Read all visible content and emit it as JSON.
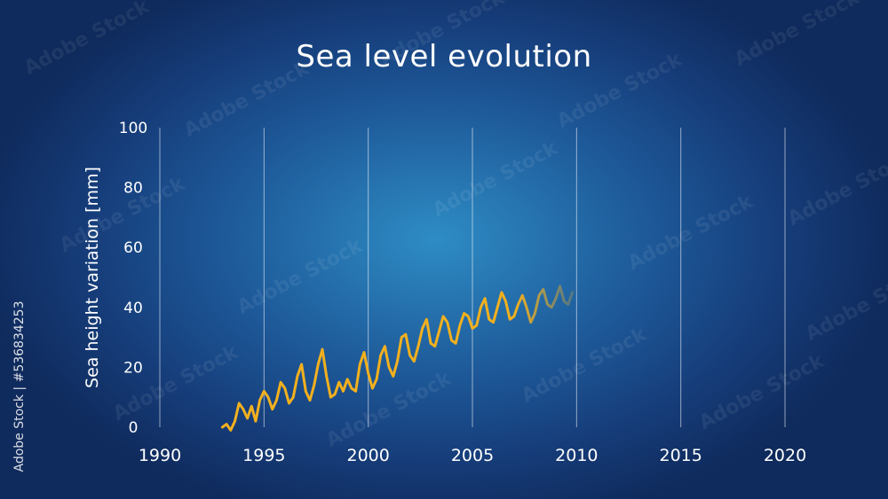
{
  "chart_data": {
    "type": "line",
    "title": "Sea level evolution",
    "xlabel": "",
    "ylabel": "Sea height variation [mm]",
    "x_ticks": [
      1990,
      1995,
      2000,
      2005,
      2010,
      2015,
      2020
    ],
    "y_ticks": [
      0,
      20,
      40,
      60,
      80,
      100
    ],
    "xlim": [
      1990,
      2020
    ],
    "ylim": [
      0,
      100
    ],
    "grid": "vertical",
    "series": [
      {
        "color": "#f2b01e",
        "x": [
          1993.0,
          1993.2,
          1993.4,
          1993.6,
          1993.8,
          1994.0,
          1994.2,
          1994.4,
          1994.6,
          1994.8,
          1995.0,
          1995.2,
          1995.4,
          1995.6,
          1995.8,
          1996.0,
          1996.2,
          1996.4,
          1996.6,
          1996.8,
          1997.0,
          1997.2,
          1997.4,
          1997.6,
          1997.8,
          1998.0,
          1998.2,
          1998.4,
          1998.6,
          1998.8,
          1999.0,
          1999.2,
          1999.4,
          1999.6,
          1999.8,
          2000.0,
          2000.2,
          2000.4,
          2000.6,
          2000.8,
          2001.0,
          2001.2,
          2001.4,
          2001.6,
          2001.8,
          2002.0,
          2002.2,
          2002.4,
          2002.6,
          2002.8,
          2003.0,
          2003.2,
          2003.4,
          2003.6,
          2003.8,
          2004.0,
          2004.2,
          2004.4,
          2004.6,
          2004.8,
          2005.0,
          2005.2,
          2005.4,
          2005.6,
          2005.8,
          2006.0,
          2006.2,
          2006.4,
          2006.6,
          2006.8,
          2007.0,
          2007.2,
          2007.4,
          2007.6,
          2007.8,
          2008.0,
          2008.2,
          2008.4,
          2008.6,
          2008.8,
          2009.0,
          2009.2,
          2009.4,
          2009.6,
          2009.8
        ],
        "y": [
          0,
          1,
          -1,
          2,
          8,
          6,
          3,
          7,
          2,
          9,
          12,
          10,
          6,
          9,
          15,
          13,
          8,
          10,
          17,
          21,
          12,
          9,
          14,
          21,
          26,
          17,
          10,
          11,
          15,
          12,
          16,
          13,
          12,
          21,
          25,
          18,
          13,
          16,
          24,
          27,
          20,
          17,
          22,
          30,
          31,
          24,
          22,
          27,
          33,
          36,
          28,
          27,
          32,
          37,
          35,
          29,
          28,
          34,
          38,
          37,
          33,
          34,
          40,
          43,
          36,
          35,
          40,
          45,
          42,
          36,
          37,
          41,
          44,
          40,
          35,
          38,
          44,
          46,
          41,
          40,
          43,
          47,
          42,
          41,
          45
        ]
      }
    ]
  },
  "watermark": {
    "stock_id": "Adobe Stock | #536834253",
    "repeat_text": "Adobe Stock"
  }
}
